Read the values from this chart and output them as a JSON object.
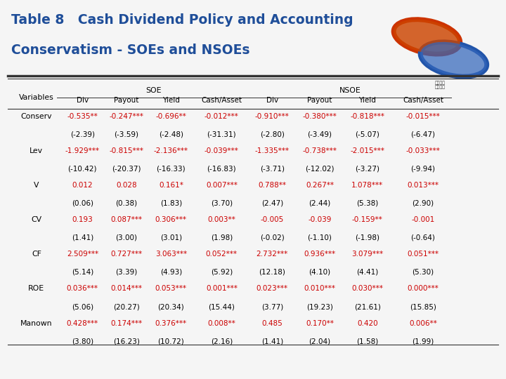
{
  "title_line1": "Table 8   Cash Dividend Policy and Accounting",
  "title_line2": "Conservatism - SOEs and NSOEs",
  "title_color": "#1F4E99",
  "bg_color": "#F5F5F5",
  "header_soe": "SOE",
  "header_nsoe": "NSOE",
  "col_headers": [
    "Div",
    "Payout",
    "Yield",
    "Cash/Asset",
    "Div",
    "Payout",
    "Yield",
    "Cash/Asset"
  ],
  "row_label": "Variables",
  "rows": [
    {
      "var": "Conserv",
      "soe": [
        "-0.535**",
        "-0.247***",
        "-0.696**",
        "-0.012***"
      ],
      "soe_t": [
        "(-2.39)",
        "(-3.59)",
        "(-2.48)",
        "(-31.31)"
      ],
      "nsoe": [
        "-0.910***",
        "-0.380***",
        "-0.818***",
        "-0.015***"
      ],
      "nsoe_t": [
        "(-2.80)",
        "(-3.49)",
        "(-5.07)",
        "(-6.47)"
      ]
    },
    {
      "var": "Lev",
      "soe": [
        "-1.929***",
        "-0.815***",
        "-2.136***",
        "-0.039***"
      ],
      "soe_t": [
        "(-10.42)",
        "(-20.37)",
        "(-16.33)",
        "(-16.83)"
      ],
      "nsoe": [
        "-1.335***",
        "-0.738***",
        "-2.015***",
        "-0.033***"
      ],
      "nsoe_t": [
        "(-3.71)",
        "(-12.02)",
        "(-3.27)",
        "(-9.94)"
      ]
    },
    {
      "var": "V",
      "soe": [
        "0.012",
        "0.028",
        "0.161*",
        "0.007***"
      ],
      "soe_t": [
        "(0.06)",
        "(0.38)",
        "(1.83)",
        "(3.70)"
      ],
      "nsoe": [
        "0.788**",
        "0.267**",
        "1.078***",
        "0.013***"
      ],
      "nsoe_t": [
        "(2.47)",
        "(2.44)",
        "(5.38)",
        "(2.90)"
      ]
    },
    {
      "var": "CV",
      "soe": [
        "0.193",
        "0.087***",
        "0.306***",
        "0.003**"
      ],
      "soe_t": [
        "(1.41)",
        "(3.00)",
        "(3.01)",
        "(1.98)"
      ],
      "nsoe": [
        "-0.005",
        "-0.039",
        "-0.159**",
        "-0.001"
      ],
      "nsoe_t": [
        "(-0.02)",
        "(-1.10)",
        "(-1.98)",
        "(-0.64)"
      ]
    },
    {
      "var": "CF",
      "soe": [
        "2.509***",
        "0.727***",
        "3.063***",
        "0.052***"
      ],
      "soe_t": [
        "(5.14)",
        "(3.39)",
        "(4.93)",
        "(5.92)"
      ],
      "nsoe": [
        "2.732***",
        "0.936***",
        "3.079***",
        "0.051***"
      ],
      "nsoe_t": [
        "(12.18)",
        "(4.10)",
        "(4.41)",
        "(5.30)"
      ]
    },
    {
      "var": "ROE",
      "soe": [
        "0.036***",
        "0.014***",
        "0.053***",
        "0.001***"
      ],
      "soe_t": [
        "(5.06)",
        "(20.27)",
        "(20.34)",
        "(15.44)"
      ],
      "nsoe": [
        "0.023***",
        "0.010***",
        "0.030***",
        "0.000***"
      ],
      "nsoe_t": [
        "(3.77)",
        "(19.23)",
        "(21.61)",
        "(15.85)"
      ]
    },
    {
      "var": "Manown",
      "soe": [
        "0.428***",
        "0.174***",
        "0.376***",
        "0.008**"
      ],
      "soe_t": [
        "(3.80)",
        "(16.23)",
        "(10.72)",
        "(2.16)"
      ],
      "nsoe": [
        "0.485",
        "0.170**",
        "0.420",
        "0.006**"
      ],
      "nsoe_t": [
        "(1.41)",
        "(2.04)",
        "(1.58)",
        "(1.99)"
      ]
    }
  ],
  "data_color": "#CC0000",
  "tstat_color": "#000000",
  "var_color": "#000000",
  "header_color": "#000000",
  "title_fontsize": 13.5,
  "header_fontsize": 7.8,
  "data_fontsize": 7.5,
  "var_fontsize": 7.8
}
